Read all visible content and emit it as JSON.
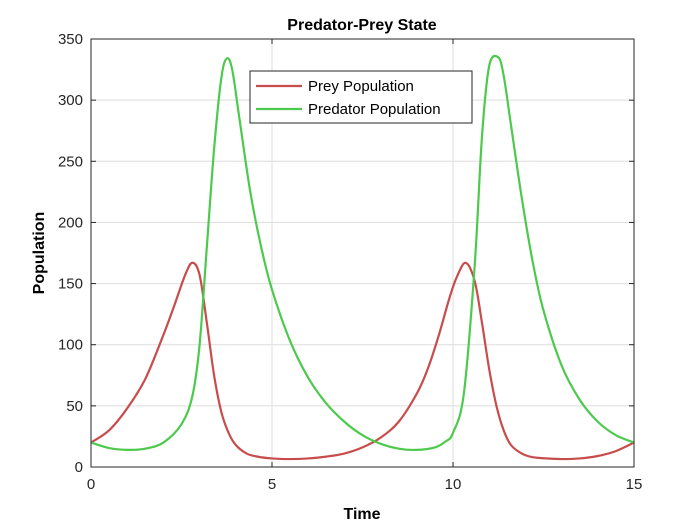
{
  "chart_data": {
    "type": "line",
    "title": "Predator-Prey State",
    "xlabel": "Time",
    "ylabel": "Population",
    "xlim": [
      0,
      15
    ],
    "ylim": [
      0,
      350
    ],
    "xticks": [
      0,
      5,
      10,
      15
    ],
    "yticks": [
      0,
      50,
      100,
      150,
      200,
      250,
      300,
      350
    ],
    "grid": true,
    "legend_position": "top-center",
    "series": [
      {
        "name": "Prey Population",
        "color": "#c94c4c",
        "x": [
          0,
          0.5,
          1.0,
          1.5,
          2.0,
          2.3,
          2.6,
          2.8,
          3.0,
          3.2,
          3.4,
          3.6,
          3.8,
          4.0,
          4.3,
          4.6,
          5.0,
          5.5,
          6.0,
          6.5,
          7.0,
          7.5,
          8.0,
          8.5,
          9.0,
          9.3,
          9.6,
          9.9,
          10.1,
          10.35,
          10.6,
          10.8,
          11.0,
          11.2,
          11.4,
          11.6,
          11.9,
          12.2,
          12.6,
          13.0,
          13.5,
          14.0,
          14.5,
          15.0
        ],
        "y": [
          20,
          30,
          48,
          72,
          108,
          132,
          157,
          167,
          157,
          118,
          75,
          45,
          28,
          18,
          11,
          8.5,
          7,
          6.5,
          7,
          8.5,
          11,
          16,
          24,
          37,
          60,
          80,
          107,
          138,
          155,
          167,
          152,
          118,
          80,
          50,
          30,
          18,
          11,
          8,
          7,
          6.5,
          7,
          9,
          13,
          20
        ]
      },
      {
        "name": "Predator Population",
        "color": "#4dc94d",
        "x": [
          0,
          0.5,
          1.0,
          1.5,
          2.0,
          2.5,
          2.8,
          3.0,
          3.2,
          3.4,
          3.6,
          3.75,
          3.9,
          4.1,
          4.4,
          4.7,
          5.0,
          5.5,
          6.0,
          6.5,
          7.0,
          7.5,
          8.0,
          8.5,
          9.0,
          9.5,
          9.8,
          10.0,
          10.3,
          10.6,
          10.8,
          11.0,
          11.25,
          11.4,
          11.6,
          11.9,
          12.2,
          12.5,
          13.0,
          13.5,
          14.0,
          14.5,
          15.0
        ],
        "y": [
          20,
          15.5,
          14,
          15,
          20,
          35,
          58,
          100,
          180,
          260,
          318,
          334,
          325,
          285,
          225,
          180,
          145,
          103,
          73,
          52,
          37,
          26,
          19,
          15,
          14,
          16,
          21,
          28,
          60,
          165,
          270,
          328,
          335,
          320,
          280,
          220,
          168,
          128,
          83,
          55,
          37,
          26,
          20
        ]
      }
    ]
  }
}
